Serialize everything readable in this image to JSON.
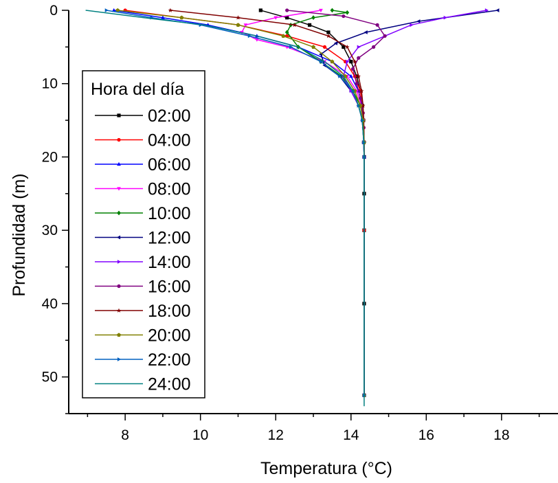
{
  "chart_data": {
    "type": "line",
    "xlabel": "Temperatura (°C)",
    "ylabel": "Profundidad (m)",
    "xlim": [
      6.5,
      19.5
    ],
    "ylim": [
      0,
      55
    ],
    "y_inverted": true,
    "x_ticks": [
      8,
      10,
      12,
      14,
      16,
      18
    ],
    "y_ticks": [
      0,
      10,
      20,
      30,
      40,
      50
    ],
    "grid": false,
    "legend_title": "Hora del día",
    "legend_position": "left",
    "series": [
      {
        "name": "02:00",
        "color": "#000000",
        "marker": "square",
        "x": [
          11.6,
          12.3,
          12.9,
          13.4,
          13.8,
          14.0,
          14.15,
          14.25,
          14.3,
          14.33,
          14.34,
          14.35,
          14.35,
          14.35,
          14.35,
          14.35
        ],
        "y": [
          0,
          1,
          2,
          3,
          5,
          7,
          9,
          11,
          13,
          15,
          18,
          20,
          25,
          30,
          40,
          52.5
        ]
      },
      {
        "name": "04:00",
        "color": "#ff0000",
        "marker": "circle",
        "x": [
          8.0,
          9.5,
          11.0,
          12.3,
          13.3,
          13.85,
          14.1,
          14.25,
          14.3,
          14.33,
          14.34,
          14.35,
          14.35,
          14.35
        ],
        "y": [
          0,
          1,
          2,
          3.5,
          5,
          7,
          9,
          11,
          13,
          15,
          18,
          20,
          30,
          52.5
        ]
      },
      {
        "name": "06:00",
        "color": "#0000ff",
        "marker": "triangle-up",
        "x": [
          7.7,
          9.0,
          10.2,
          11.5,
          12.6,
          13.5,
          14.0,
          14.2,
          14.3,
          14.33,
          14.34,
          14.35,
          14.35
        ],
        "y": [
          0,
          1,
          2,
          3.5,
          5,
          7,
          9,
          11,
          13,
          15,
          18,
          20,
          52.5
        ]
      },
      {
        "name": "08:00",
        "color": "#ff00ff",
        "marker": "triangle-down",
        "x": [
          13.2,
          12.0,
          11.2,
          11.1,
          11.5,
          12.3,
          13.3,
          13.9,
          14.15,
          14.28,
          14.33,
          14.35,
          14.35
        ],
        "y": [
          0,
          1,
          2,
          3,
          4,
          5,
          7,
          9,
          11,
          13,
          15,
          18,
          52.5
        ]
      },
      {
        "name": "10:00",
        "color": "#008000",
        "marker": "diamond",
        "x": [
          13.5,
          13.9,
          13.0,
          12.4,
          12.3,
          12.6,
          13.2,
          13.75,
          14.05,
          14.25,
          14.33,
          14.35,
          14.35
        ],
        "y": [
          0,
          0.3,
          1,
          2,
          3,
          5,
          7,
          9,
          11,
          13,
          15,
          18,
          52.5
        ]
      },
      {
        "name": "12:00",
        "color": "#000080",
        "marker": "triangle-left",
        "x": [
          17.9,
          15.8,
          14.4,
          13.6,
          13.2,
          13.3,
          13.7,
          14.0,
          14.2,
          14.3,
          14.34,
          14.35,
          14.35
        ],
        "y": [
          0,
          1.5,
          3,
          4.5,
          6,
          7.5,
          9,
          11,
          13,
          15,
          18,
          20,
          52.5
        ]
      },
      {
        "name": "14:00",
        "color": "#8000ff",
        "marker": "triangle-right",
        "x": [
          17.6,
          16.5,
          15.6,
          14.9,
          14.2,
          13.9,
          13.8,
          14.0,
          14.2,
          14.3,
          14.34,
          14.35,
          14.35
        ],
        "y": [
          0,
          1,
          2,
          3.5,
          5,
          7,
          9,
          11,
          13,
          15,
          18,
          20,
          52.5
        ]
      },
      {
        "name": "16:00",
        "color": "#800080",
        "marker": "circle",
        "x": [
          12.3,
          13.8,
          14.7,
          14.9,
          14.6,
          14.2,
          14.05,
          14.15,
          14.25,
          14.32,
          14.34,
          14.35,
          14.35
        ],
        "y": [
          0,
          0.8,
          2,
          3.5,
          5,
          6.5,
          8,
          10,
          12,
          14,
          16,
          18,
          52.5
        ]
      },
      {
        "name": "18:00",
        "color": "#800000",
        "marker": "star",
        "x": [
          9.2,
          11.0,
          12.5,
          13.4,
          13.9,
          14.1,
          14.2,
          14.28,
          14.32,
          14.34,
          14.35,
          14.35
        ],
        "y": [
          0,
          1,
          2,
          3.5,
          5,
          7,
          9,
          11,
          13,
          15,
          18,
          52.5
        ]
      },
      {
        "name": "20:00",
        "color": "#808000",
        "marker": "pentagon",
        "x": [
          7.8,
          9.5,
          11.0,
          12.2,
          13.0,
          13.5,
          13.85,
          14.1,
          14.25,
          14.32,
          14.35,
          14.35
        ],
        "y": [
          0,
          1,
          2,
          3.5,
          5,
          7,
          9,
          11,
          13,
          15,
          18,
          52.5
        ]
      },
      {
        "name": "22:00",
        "color": "#0060c0",
        "marker": "triangle-right",
        "x": [
          7.5,
          8.7,
          10.0,
          11.3,
          12.4,
          13.2,
          13.7,
          14.05,
          14.2,
          14.3,
          14.34,
          14.35,
          14.35
        ],
        "y": [
          0,
          1,
          2,
          3.5,
          5,
          7,
          9,
          11,
          13,
          15,
          18,
          20,
          52.5
        ]
      },
      {
        "name": "24:00",
        "color": "#008080",
        "marker": "none",
        "x": [
          6.95,
          8.5,
          10.1,
          11.5,
          12.6,
          13.3,
          13.8,
          14.05,
          14.2,
          14.3,
          14.34,
          14.35,
          14.35
        ],
        "y": [
          0,
          1,
          2,
          3.5,
          5,
          7,
          9,
          11,
          13,
          15,
          18,
          20,
          54
        ]
      }
    ]
  }
}
